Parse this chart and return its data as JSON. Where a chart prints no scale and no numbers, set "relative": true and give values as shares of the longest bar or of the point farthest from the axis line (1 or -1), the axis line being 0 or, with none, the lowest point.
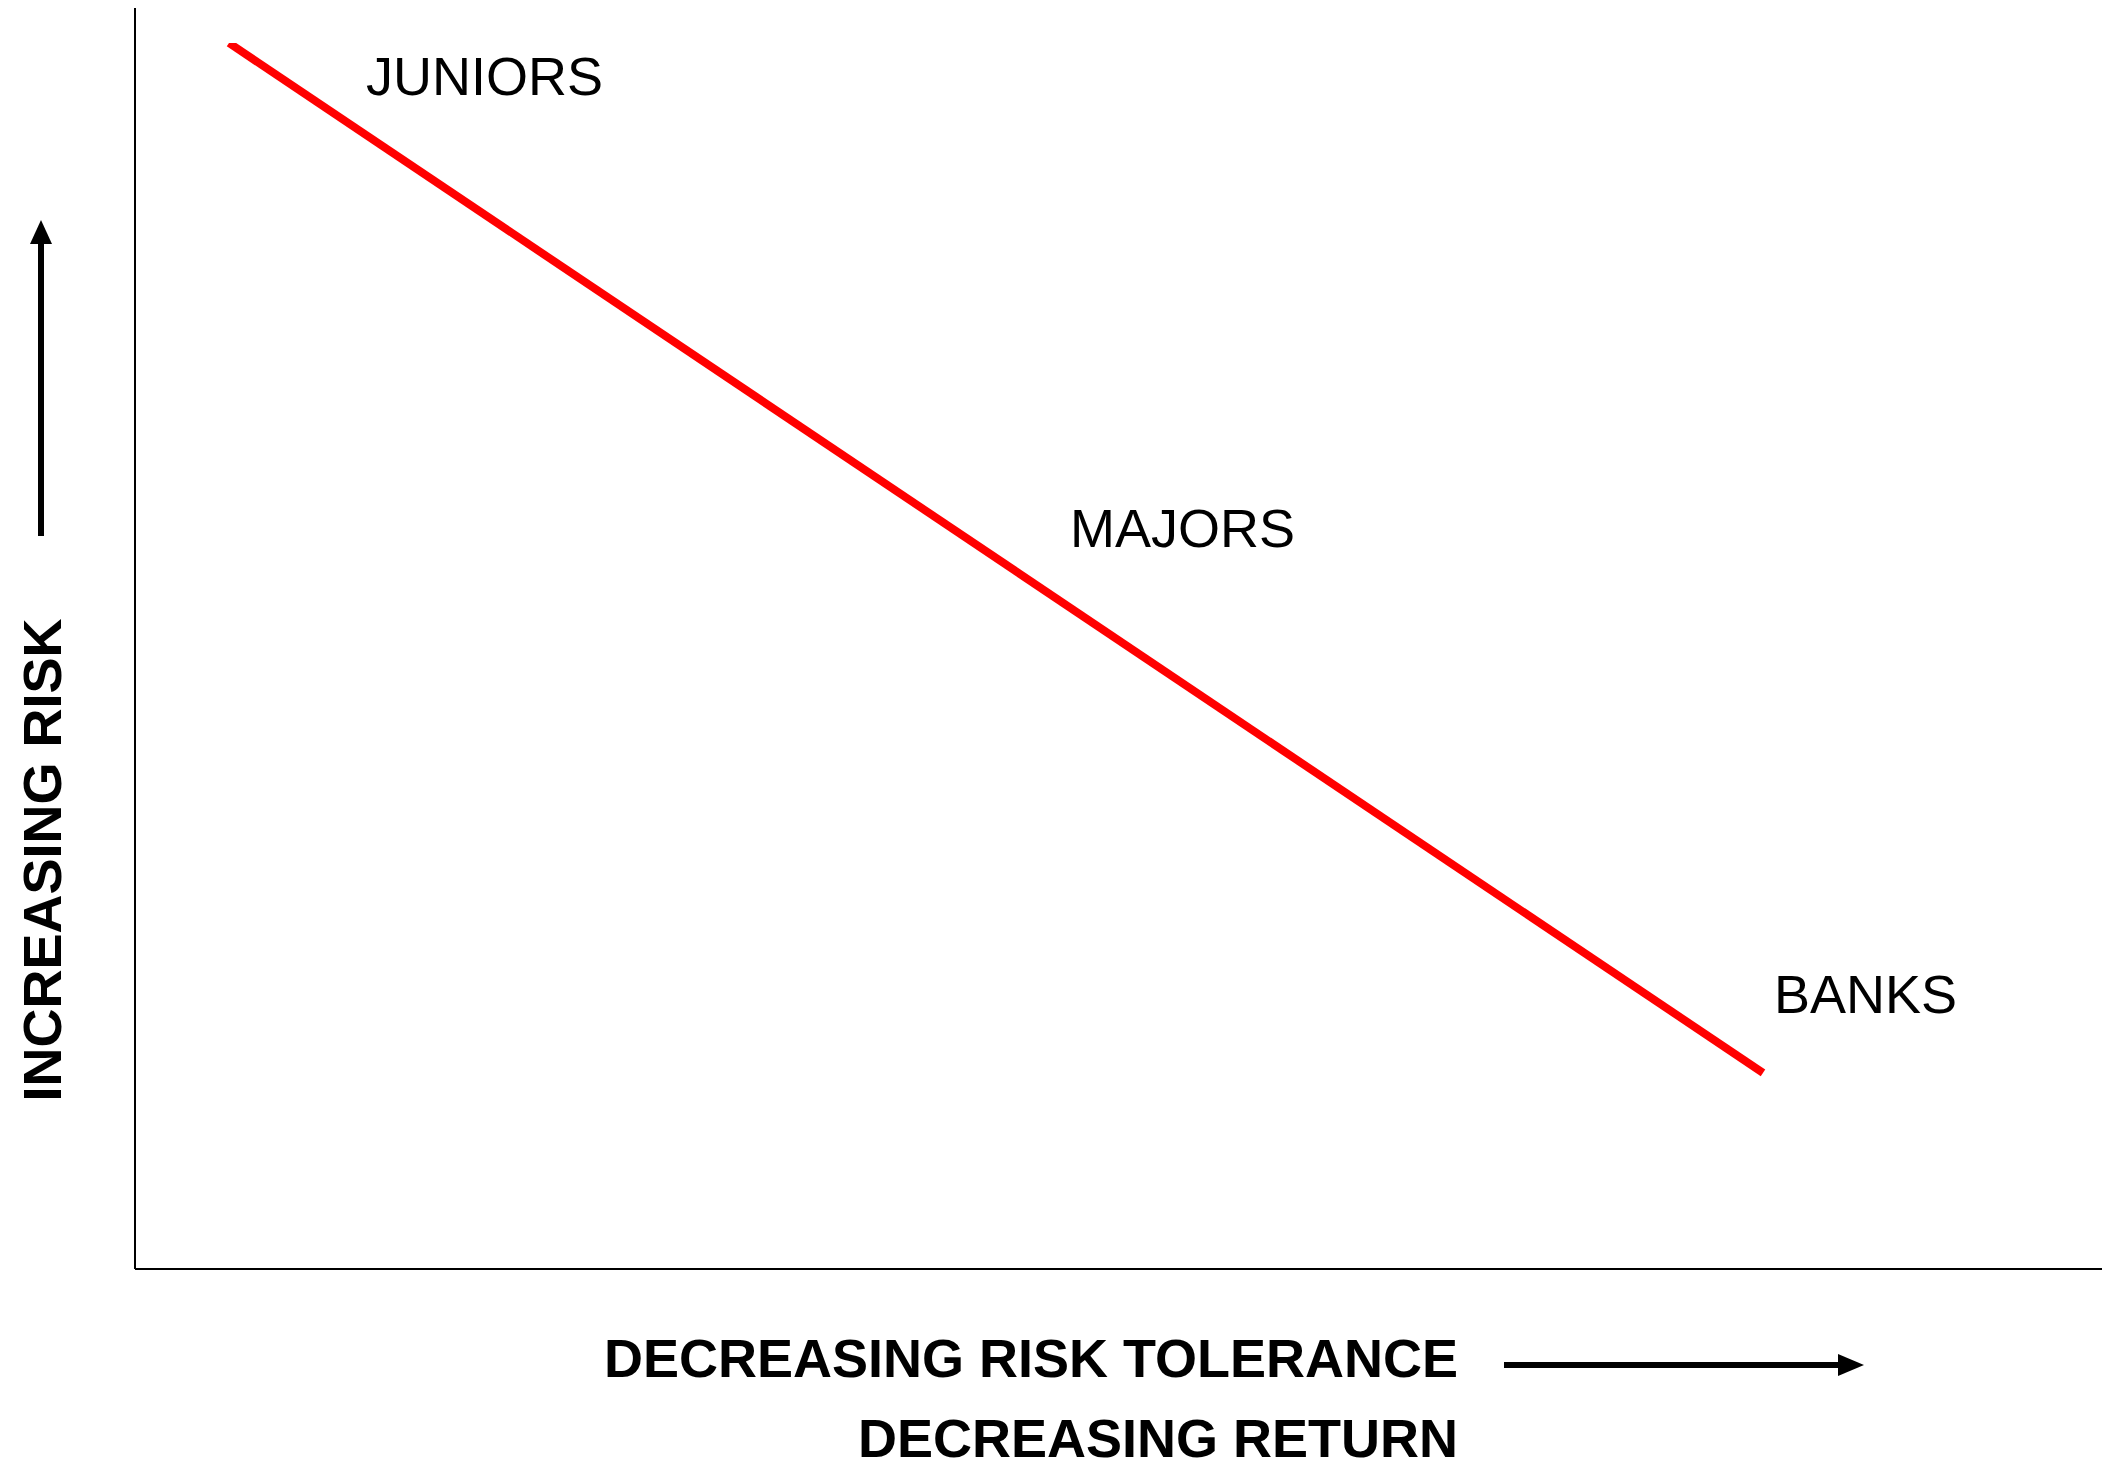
{
  "chart_data": {
    "type": "line",
    "relative": true,
    "categories": [
      null,
      null
    ],
    "series": [
      {
        "color": "#ff0000",
        "values": [
          1,
          0.16
        ]
      }
    ],
    "xlabel": "DECREASING RISK TOLERANCE\nDECREASING RETURN",
    "ylabel": "INCREASING RISK",
    "annotations": [
      "JUNIORS",
      "MAJORS",
      "BANKS"
    ]
  }
}
